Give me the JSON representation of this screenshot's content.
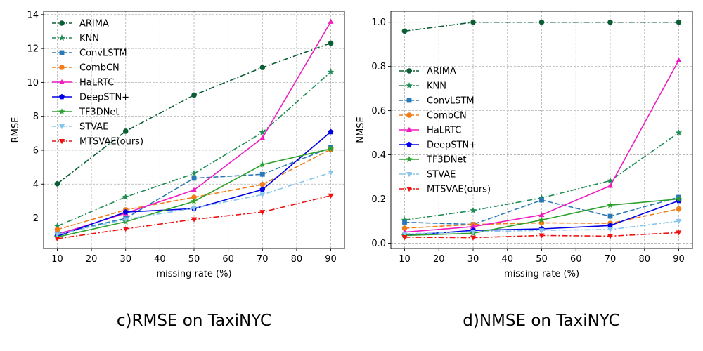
{
  "chart_data": [
    {
      "type": "line",
      "caption": "c)RMSE on TaxiNYC",
      "xlabel": "missing rate (%)",
      "ylabel": "RMSE",
      "x": [
        10,
        30,
        50,
        70,
        90
      ],
      "xlim": [
        6,
        94
      ],
      "ylim": [
        0.2,
        14.2
      ],
      "xticks": [
        10,
        20,
        30,
        40,
        50,
        60,
        70,
        80,
        90
      ],
      "yticks": [
        2,
        4,
        6,
        8,
        10,
        12,
        14
      ],
      "grid": true,
      "legend_position": "upper-left",
      "series": [
        {
          "name": "ARIMA",
          "color": "#0b5e33",
          "marker": "circle",
          "dash": "dashdot",
          "values": [
            4.02,
            7.12,
            9.25,
            10.88,
            12.32
          ]
        },
        {
          "name": "KNN",
          "color": "#1e8c54",
          "marker": "star",
          "dash": "dashdot",
          "values": [
            1.52,
            3.24,
            4.62,
            7.05,
            10.62
          ]
        },
        {
          "name": "ConvLSTM",
          "color": "#2a78b4",
          "marker": "square",
          "dash": "dashed",
          "values": [
            1.08,
            1.98,
            4.35,
            4.58,
            6.15
          ]
        },
        {
          "name": "CombCN",
          "color": "#f07d1a",
          "marker": "circle",
          "dash": "dashed",
          "values": [
            1.32,
            2.48,
            3.22,
            3.98,
            6.05
          ]
        },
        {
          "name": "HaLRTC",
          "color": "#ee1bbf",
          "marker": "triangle-up",
          "dash": "solid",
          "values": [
            1.02,
            2.28,
            3.65,
            6.72,
            13.58
          ]
        },
        {
          "name": "DeepSTN+",
          "color": "#0000e6",
          "marker": "pentagon",
          "dash": "solid",
          "values": [
            0.92,
            2.35,
            2.55,
            3.68,
            7.08
          ]
        },
        {
          "name": "TF3DNet",
          "color": "#2ca02c",
          "marker": "star",
          "dash": "solid",
          "values": [
            0.88,
            1.78,
            2.98,
            5.15,
            6.08
          ]
        },
        {
          "name": "STVAE",
          "color": "#87c6ec",
          "marker": "triangle-down",
          "dash": "dashdot",
          "values": [
            1.02,
            1.92,
            2.58,
            3.38,
            4.68
          ]
        },
        {
          "name": "MTSVAE(ours)",
          "color": "#ee1111",
          "marker": "triangle-down",
          "dash": "dashdot",
          "values": [
            0.78,
            1.36,
            1.92,
            2.35,
            3.32
          ]
        }
      ]
    },
    {
      "type": "line",
      "caption": "d)NMSE on TaxiNYC",
      "xlabel": "missing rate (%)",
      "ylabel": "NMSE",
      "x": [
        10,
        30,
        50,
        70,
        90
      ],
      "xlim": [
        6,
        94
      ],
      "ylim": [
        -0.024,
        1.05
      ],
      "xticks": [
        10,
        20,
        30,
        40,
        50,
        60,
        70,
        80,
        90
      ],
      "yticks": [
        0.0,
        0.2,
        0.4,
        0.6,
        0.8,
        1.0
      ],
      "ytick_labels": [
        "0.0",
        "0.2",
        "0.4",
        "0.6",
        "0.8",
        "1.0"
      ],
      "grid": true,
      "legend_position": "center-left",
      "series": [
        {
          "name": "ARIMA",
          "color": "#0b5e33",
          "marker": "circle",
          "dash": "dashdot",
          "values": [
            0.96,
            1.0,
            1.0,
            1.0,
            1.0
          ]
        },
        {
          "name": "KNN",
          "color": "#1e8c54",
          "marker": "star",
          "dash": "dashdot",
          "values": [
            0.105,
            0.148,
            0.205,
            0.283,
            0.5
          ]
        },
        {
          "name": "ConvLSTM",
          "color": "#2a78b4",
          "marker": "square",
          "dash": "dashed",
          "values": [
            0.095,
            0.085,
            0.195,
            0.122,
            0.208
          ]
        },
        {
          "name": "CombCN",
          "color": "#f07d1a",
          "marker": "circle",
          "dash": "dashed",
          "values": [
            0.068,
            0.085,
            0.092,
            0.09,
            0.155
          ]
        },
        {
          "name": "HaLRTC",
          "color": "#ee1bbf",
          "marker": "triangle-up",
          "dash": "solid",
          "values": [
            0.05,
            0.075,
            0.128,
            0.26,
            0.828
          ]
        },
        {
          "name": "DeepSTN+",
          "color": "#0000e6",
          "marker": "pentagon",
          "dash": "solid",
          "values": [
            0.035,
            0.058,
            0.065,
            0.08,
            0.192
          ]
        },
        {
          "name": "TF3DNet",
          "color": "#2ca02c",
          "marker": "star",
          "dash": "solid",
          "values": [
            0.035,
            0.045,
            0.105,
            0.172,
            0.2
          ]
        },
        {
          "name": "STVAE",
          "color": "#87c6ec",
          "marker": "triangle-down",
          "dash": "dashdot",
          "values": [
            0.042,
            0.052,
            0.058,
            0.062,
            0.1
          ]
        },
        {
          "name": "MTSVAE(ours)",
          "color": "#ee1111",
          "marker": "triangle-down",
          "dash": "dashdot",
          "values": [
            0.027,
            0.025,
            0.035,
            0.032,
            0.048
          ]
        }
      ]
    }
  ]
}
